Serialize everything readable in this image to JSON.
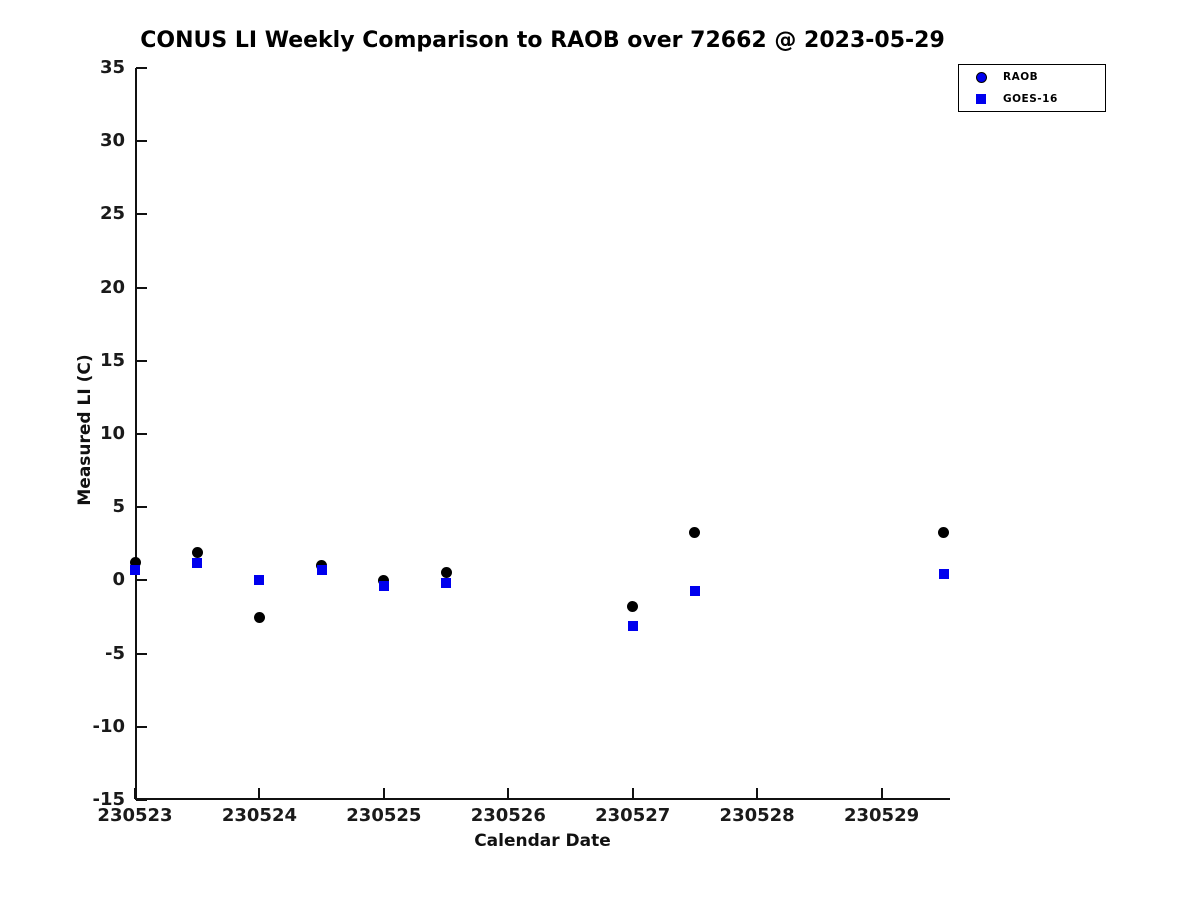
{
  "chart_data": {
    "type": "scatter",
    "title": "CONUS LI Weekly Comparison to RAOB over 72662 @ 2023-05-29",
    "xlabel": "Calendar Date",
    "ylabel": "Measured LI (C)",
    "xlim": [
      230523,
      230529.55
    ],
    "ylim": [
      -15,
      35
    ],
    "xtick_values": [
      230523,
      230524,
      230525,
      230526,
      230527,
      230528,
      230529
    ],
    "xtick_labels": [
      "230523",
      "230524",
      "230525",
      "230526",
      "230527",
      "230528",
      "230529"
    ],
    "ytick_values": [
      -15,
      -10,
      -5,
      0,
      5,
      10,
      15,
      20,
      25,
      30,
      35
    ],
    "ytick_labels": [
      "-15",
      "-10",
      "-5",
      "0",
      "5",
      "10",
      "15",
      "20",
      "25",
      "30",
      "35"
    ],
    "grid": false,
    "legend_position": "top-right",
    "series": [
      {
        "name": "RAOB",
        "marker": "circle",
        "plot_color": "#000000",
        "legend_color": "#0000EE",
        "points": [
          [
            230523.0,
            1.2
          ],
          [
            230523.5,
            1.9
          ],
          [
            230524.0,
            -2.5
          ],
          [
            230524.5,
            1.0
          ],
          [
            230525.0,
            0.0
          ],
          [
            230525.5,
            0.55
          ],
          [
            230527.0,
            -1.8
          ],
          [
            230527.5,
            3.25
          ],
          [
            230529.5,
            3.25
          ]
        ]
      },
      {
        "name": "GOES-16",
        "marker": "square",
        "plot_color": "#0000EE",
        "legend_color": "#0000EE",
        "points": [
          [
            230523.0,
            0.7
          ],
          [
            230523.5,
            1.2
          ],
          [
            230524.0,
            0.0
          ],
          [
            230524.5,
            0.7
          ],
          [
            230525.0,
            -0.4
          ],
          [
            230525.5,
            -0.15
          ],
          [
            230527.0,
            -3.1
          ],
          [
            230527.5,
            -0.75
          ],
          [
            230529.5,
            0.45
          ]
        ]
      }
    ]
  }
}
